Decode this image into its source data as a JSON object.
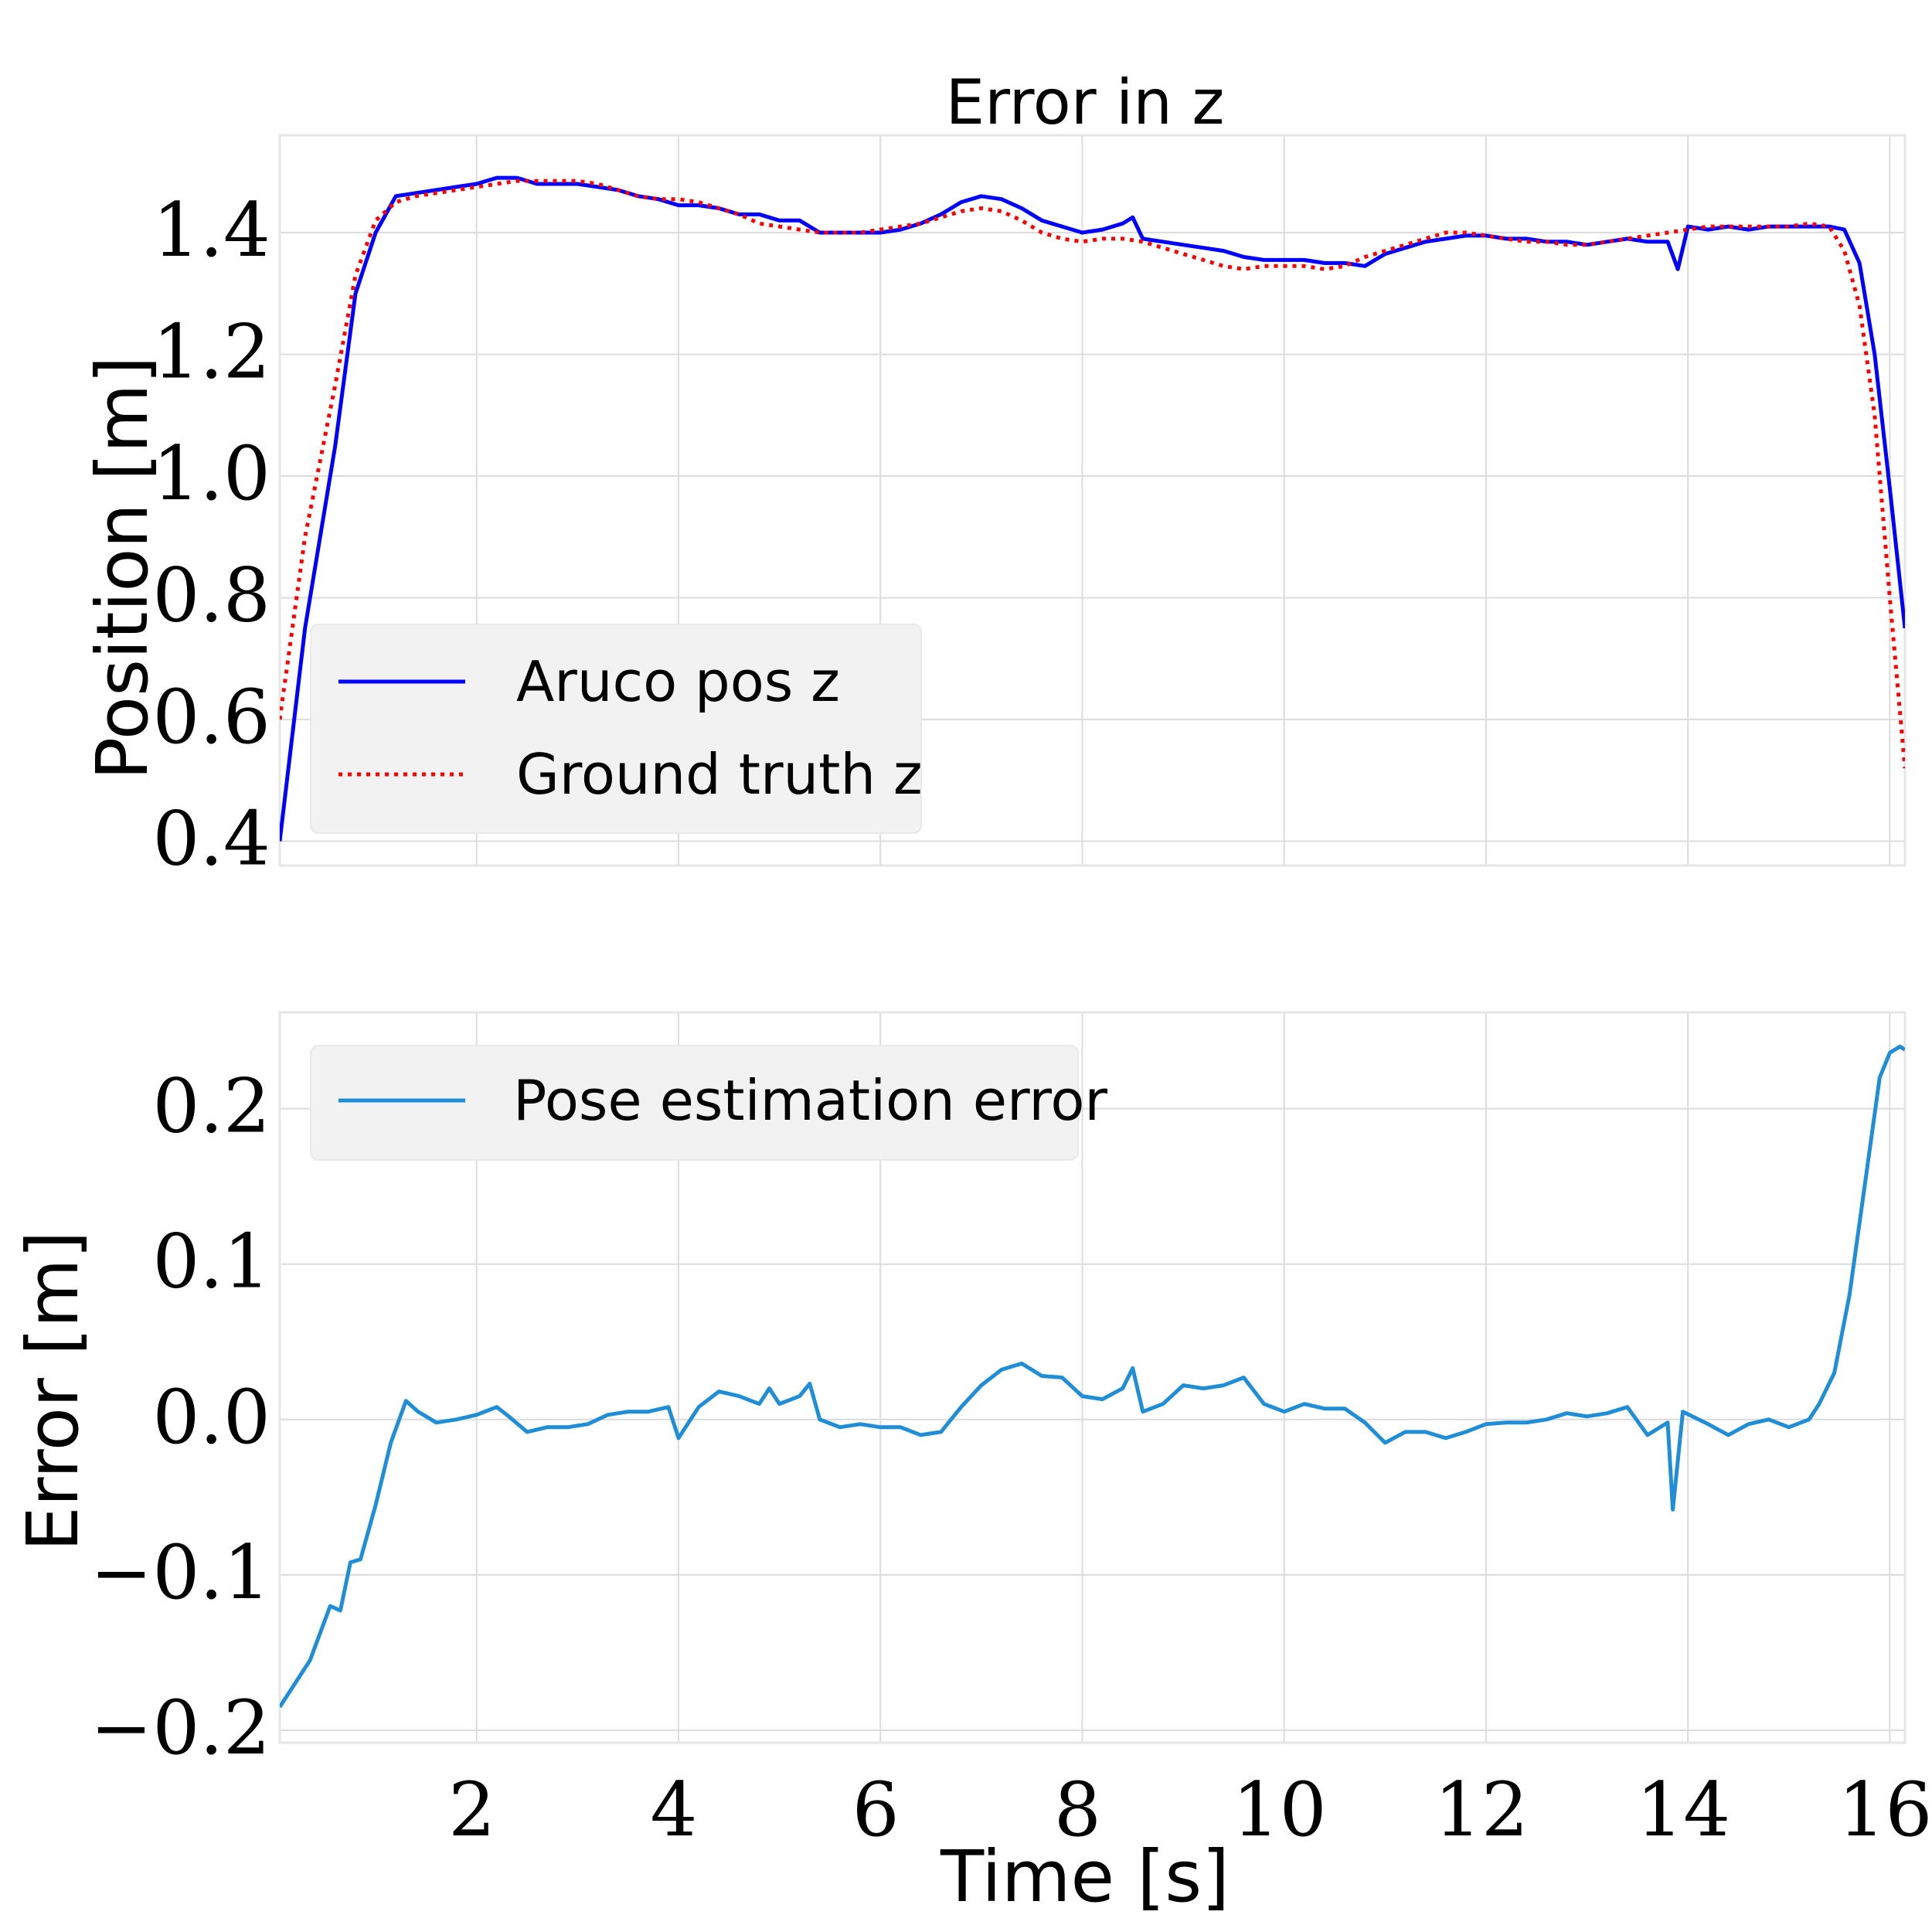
{
  "chart_data": [
    {
      "type": "line",
      "title": "Error in z",
      "xlabel": "",
      "ylabel": "Position [m]",
      "xlim": [
        0.05,
        16.15
      ],
      "ylim": [
        0.36,
        1.56
      ],
      "yticks": [
        0.4,
        0.6,
        0.8,
        1.0,
        1.2,
        1.4
      ],
      "ytick_labels": [
        "0.4",
        "0.6",
        "0.8",
        "1.0",
        "1.2",
        "1.4"
      ],
      "xticks": [
        2,
        4,
        6,
        8,
        10,
        12,
        14,
        16
      ],
      "grid": true,
      "legend_position": "lower-left",
      "series": [
        {
          "name": "Aruco pos z",
          "color": "#0000ff",
          "style": "solid",
          "x": [
            0.05,
            0.3,
            0.6,
            0.8,
            1.0,
            1.2,
            1.4,
            1.6,
            1.8,
            2.0,
            2.2,
            2.4,
            2.6,
            2.8,
            3.0,
            3.2,
            3.4,
            3.6,
            3.8,
            4.0,
            4.2,
            4.4,
            4.6,
            4.8,
            5.0,
            5.2,
            5.4,
            5.6,
            5.8,
            6.0,
            6.2,
            6.4,
            6.6,
            6.8,
            7.0,
            7.2,
            7.4,
            7.6,
            7.8,
            8.0,
            8.2,
            8.4,
            8.5,
            8.6,
            8.8,
            9.0,
            9.2,
            9.4,
            9.6,
            9.8,
            10.0,
            10.2,
            10.4,
            10.6,
            10.8,
            11.0,
            11.2,
            11.4,
            11.6,
            11.8,
            12.0,
            12.2,
            12.4,
            12.6,
            12.8,
            13.0,
            13.2,
            13.4,
            13.6,
            13.8,
            13.9,
            14.0,
            14.2,
            14.4,
            14.6,
            14.8,
            15.0,
            15.2,
            15.4,
            15.55,
            15.7,
            15.85,
            16.0,
            16.15
          ],
          "y": [
            0.4,
            0.75,
            1.05,
            1.3,
            1.4,
            1.46,
            1.465,
            1.47,
            1.475,
            1.48,
            1.49,
            1.49,
            1.48,
            1.48,
            1.48,
            1.475,
            1.47,
            1.46,
            1.455,
            1.445,
            1.445,
            1.44,
            1.43,
            1.43,
            1.42,
            1.42,
            1.4,
            1.4,
            1.4,
            1.4,
            1.405,
            1.415,
            1.43,
            1.45,
            1.46,
            1.455,
            1.44,
            1.42,
            1.41,
            1.4,
            1.405,
            1.415,
            1.425,
            1.39,
            1.385,
            1.38,
            1.375,
            1.37,
            1.36,
            1.355,
            1.355,
            1.355,
            1.35,
            1.35,
            1.345,
            1.365,
            1.375,
            1.385,
            1.39,
            1.395,
            1.395,
            1.39,
            1.39,
            1.385,
            1.385,
            1.38,
            1.385,
            1.39,
            1.385,
            1.385,
            1.34,
            1.41,
            1.405,
            1.41,
            1.405,
            1.41,
            1.41,
            1.41,
            1.41,
            1.405,
            1.35,
            1.2,
            0.98,
            0.75
          ]
        },
        {
          "name": "Ground truth z",
          "color": "#ff0000",
          "style": "dotted",
          "x": [
            0.05,
            0.3,
            0.6,
            0.8,
            1.0,
            1.2,
            1.4,
            1.6,
            1.8,
            2.0,
            2.2,
            2.4,
            2.6,
            2.8,
            3.0,
            3.2,
            3.4,
            3.6,
            3.8,
            4.0,
            4.2,
            4.4,
            4.6,
            4.8,
            5.0,
            5.2,
            5.4,
            5.6,
            5.8,
            6.0,
            6.2,
            6.4,
            6.6,
            6.8,
            7.0,
            7.2,
            7.4,
            7.6,
            7.8,
            8.0,
            8.2,
            8.4,
            8.6,
            8.8,
            9.0,
            9.2,
            9.4,
            9.6,
            9.8,
            10.0,
            10.2,
            10.4,
            10.6,
            10.8,
            11.0,
            11.2,
            11.4,
            11.6,
            11.8,
            12.0,
            12.2,
            12.4,
            12.6,
            12.8,
            13.0,
            13.2,
            13.4,
            13.6,
            13.8,
            14.0,
            14.2,
            14.4,
            14.6,
            14.8,
            15.0,
            15.2,
            15.4,
            15.55,
            15.7,
            15.85,
            16.0,
            16.15
          ],
          "y": [
            0.6,
            0.9,
            1.15,
            1.33,
            1.42,
            1.45,
            1.46,
            1.465,
            1.47,
            1.475,
            1.48,
            1.485,
            1.485,
            1.485,
            1.485,
            1.48,
            1.47,
            1.46,
            1.455,
            1.455,
            1.45,
            1.44,
            1.43,
            1.415,
            1.41,
            1.405,
            1.4,
            1.4,
            1.4,
            1.405,
            1.41,
            1.415,
            1.425,
            1.435,
            1.44,
            1.435,
            1.42,
            1.4,
            1.39,
            1.385,
            1.39,
            1.39,
            1.385,
            1.375,
            1.365,
            1.355,
            1.345,
            1.34,
            1.345,
            1.345,
            1.345,
            1.34,
            1.345,
            1.36,
            1.37,
            1.38,
            1.39,
            1.4,
            1.4,
            1.395,
            1.39,
            1.385,
            1.385,
            1.38,
            1.38,
            1.385,
            1.39,
            1.395,
            1.4,
            1.405,
            1.41,
            1.41,
            1.41,
            1.41,
            1.41,
            1.415,
            1.41,
            1.37,
            1.28,
            1.1,
            0.8,
            0.52
          ]
        }
      ]
    },
    {
      "type": "line",
      "title": "",
      "xlabel": "Time [s]",
      "ylabel": "Error [m]",
      "xlim": [
        0.05,
        16.15
      ],
      "ylim": [
        -0.208,
        0.262
      ],
      "yticks": [
        -0.2,
        -0.1,
        0.0,
        0.1,
        0.2
      ],
      "ytick_labels": [
        "−0.2",
        "−0.1",
        "0.0",
        "0.1",
        "0.2"
      ],
      "xticks": [
        2,
        4,
        6,
        8,
        10,
        12,
        14,
        16
      ],
      "xtick_labels": [
        "2",
        "4",
        "6",
        "8",
        "10",
        "12",
        "14",
        "16"
      ],
      "grid": true,
      "legend_position": "upper-left",
      "series": [
        {
          "name": "Pose estimation error",
          "color": "#1f8ed6",
          "style": "solid",
          "x": [
            0.05,
            0.35,
            0.55,
            0.65,
            0.75,
            0.85,
            1.0,
            1.15,
            1.3,
            1.42,
            1.6,
            1.8,
            2.0,
            2.2,
            2.3,
            2.5,
            2.7,
            2.9,
            3.1,
            3.3,
            3.5,
            3.7,
            3.9,
            4.0,
            4.2,
            4.4,
            4.6,
            4.8,
            4.9,
            5.0,
            5.2,
            5.3,
            5.4,
            5.6,
            5.8,
            6.0,
            6.2,
            6.4,
            6.6,
            6.8,
            7.0,
            7.2,
            7.4,
            7.6,
            7.8,
            8.0,
            8.2,
            8.4,
            8.5,
            8.6,
            8.8,
            9.0,
            9.2,
            9.4,
            9.6,
            9.8,
            10.0,
            10.2,
            10.4,
            10.6,
            10.8,
            11.0,
            11.2,
            11.4,
            11.6,
            11.8,
            12.0,
            12.2,
            12.4,
            12.6,
            12.8,
            13.0,
            13.2,
            13.4,
            13.6,
            13.8,
            13.85,
            13.95,
            14.2,
            14.4,
            14.6,
            14.8,
            15.0,
            15.2,
            15.3,
            15.45,
            15.6,
            15.75,
            15.9,
            16.0,
            16.1,
            16.15
          ],
          "y": [
            -0.185,
            -0.155,
            -0.12,
            -0.123,
            -0.092,
            -0.09,
            -0.055,
            -0.015,
            0.012,
            0.005,
            -0.002,
            0.0,
            0.003,
            0.008,
            0.003,
            -0.008,
            -0.005,
            -0.005,
            -0.003,
            0.003,
            0.005,
            0.005,
            0.008,
            -0.012,
            0.008,
            0.018,
            0.015,
            0.01,
            0.02,
            0.01,
            0.015,
            0.023,
            0.0,
            -0.005,
            -0.003,
            -0.005,
            -0.005,
            -0.01,
            -0.008,
            0.008,
            0.022,
            0.032,
            0.036,
            0.028,
            0.027,
            0.015,
            0.013,
            0.02,
            0.033,
            0.005,
            0.01,
            0.022,
            0.02,
            0.022,
            0.027,
            0.01,
            0.005,
            0.01,
            0.007,
            0.007,
            -0.002,
            -0.015,
            -0.008,
            -0.008,
            -0.012,
            -0.008,
            -0.003,
            -0.002,
            -0.002,
            0.0,
            0.004,
            0.002,
            0.004,
            0.008,
            -0.01,
            -0.002,
            -0.058,
            0.005,
            -0.003,
            -0.01,
            -0.003,
            0.0,
            -0.005,
            0.0,
            0.01,
            0.03,
            0.08,
            0.15,
            0.22,
            0.236,
            0.24,
            0.238
          ]
        }
      ]
    }
  ]
}
